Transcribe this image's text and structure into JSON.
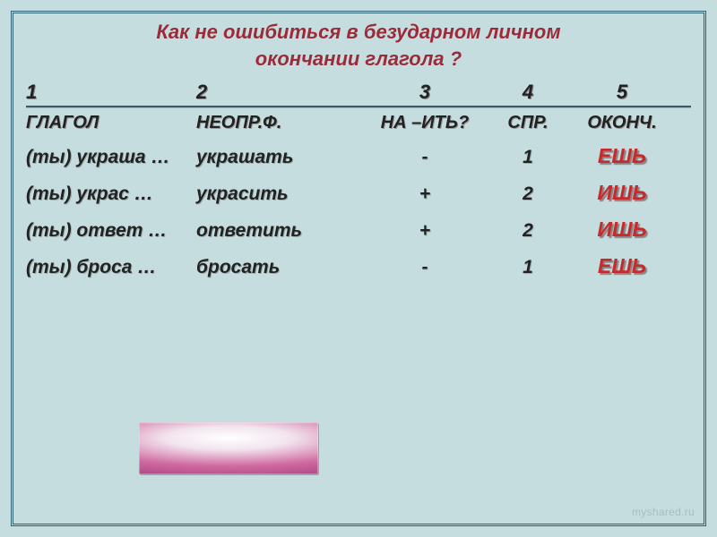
{
  "title": {
    "line1": "Как не ошибиться в безударном личном",
    "line2": "окончании глагола ?",
    "color": "#9c2b3a",
    "fontsize": 22
  },
  "columns": {
    "numbers": [
      "1",
      "2",
      "3",
      "4",
      "5"
    ],
    "headers": [
      "ГЛАГОЛ",
      "НЕОПР.Ф.",
      "НА –ИТЬ?",
      "СПР.",
      "ОКОНЧ."
    ],
    "number_color": "#222222",
    "header_color": "#222222",
    "number_fontsize": 22,
    "header_fontsize": 20
  },
  "rows": [
    {
      "glagol": "(ты) украша …",
      "neopr": "украшать",
      "na_it": "-",
      "spr": "1",
      "ending": "ЕШЬ",
      "ending_color": "#c62a2a"
    },
    {
      "glagol": "(ты) украс …",
      "neopr": "украсить",
      "na_it": "+",
      "spr": "2",
      "ending": "ИШЬ",
      "ending_color": "#c62a2a"
    },
    {
      "glagol": "(ты) ответ …",
      "neopr": "ответить",
      "na_it": "+",
      "spr": "2",
      "ending": "ИШЬ",
      "ending_color": "#c62a2a"
    },
    {
      "glagol": "(ты) броса …",
      "neopr": "бросать",
      "na_it": "-",
      "spr": "1",
      "ending": "ЕШЬ",
      "ending_color": "#c62a2a"
    }
  ],
  "data_fontsize": 21,
  "ending_fontsize": 23,
  "background_color": "#c6dde0",
  "border_color": "#2b5f6b",
  "divider_color": "#3a5964",
  "watermark": "myshared.ru"
}
